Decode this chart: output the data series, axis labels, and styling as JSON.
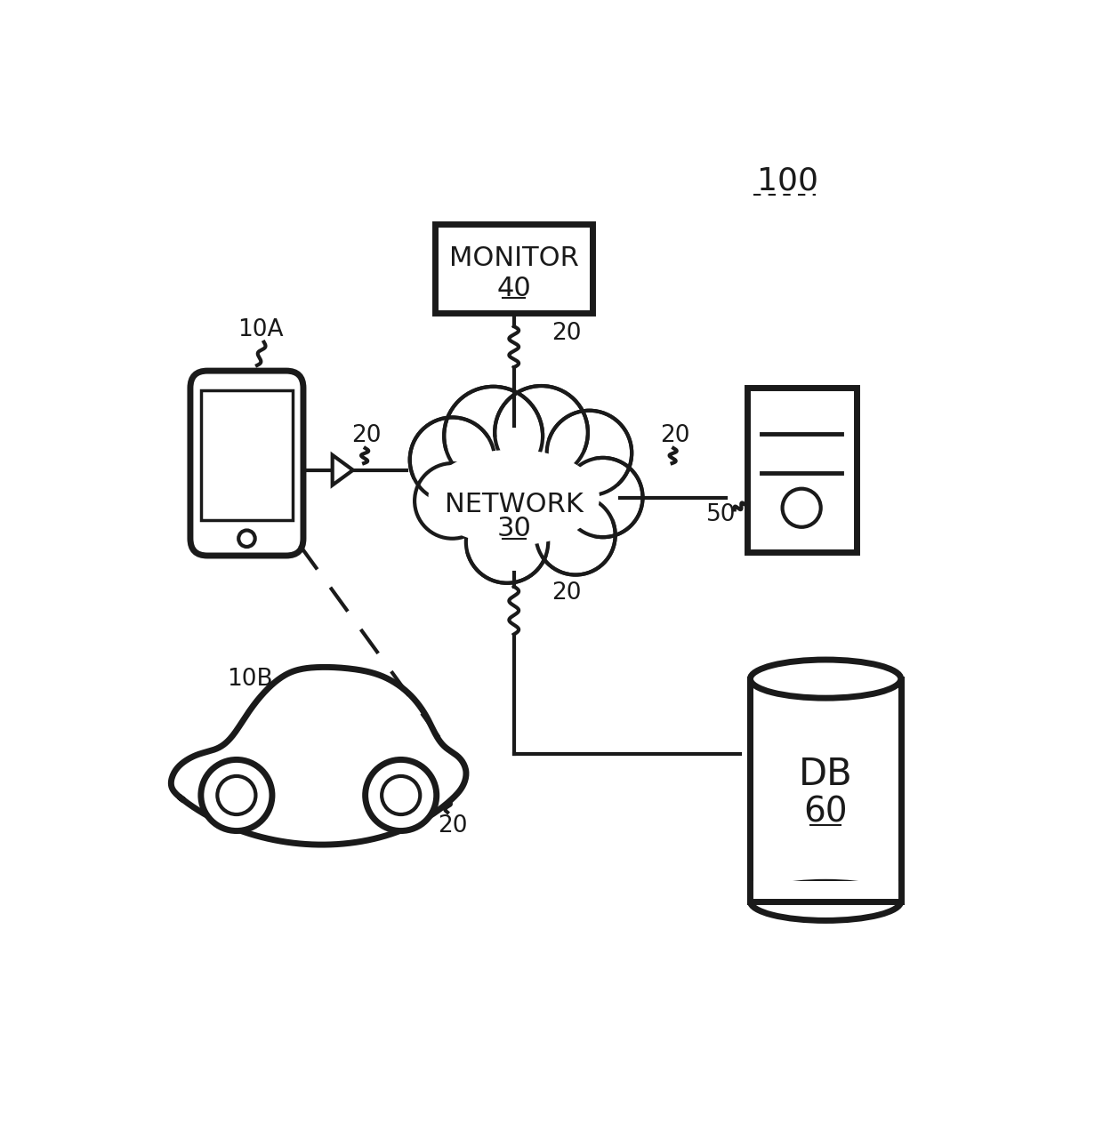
{
  "bg_color": "#ffffff",
  "line_color": "#1a1a1a",
  "label_100": "100",
  "label_10A": "10A",
  "label_10B": "10B",
  "label_20": "20",
  "label_30": "30",
  "label_40": "40",
  "label_50": "50",
  "label_60": "60",
  "monitor_text": "MONITOR",
  "network_text": "NETWORK",
  "db_text": "DB",
  "label_fontsize": 22,
  "small_fontsize": 19
}
